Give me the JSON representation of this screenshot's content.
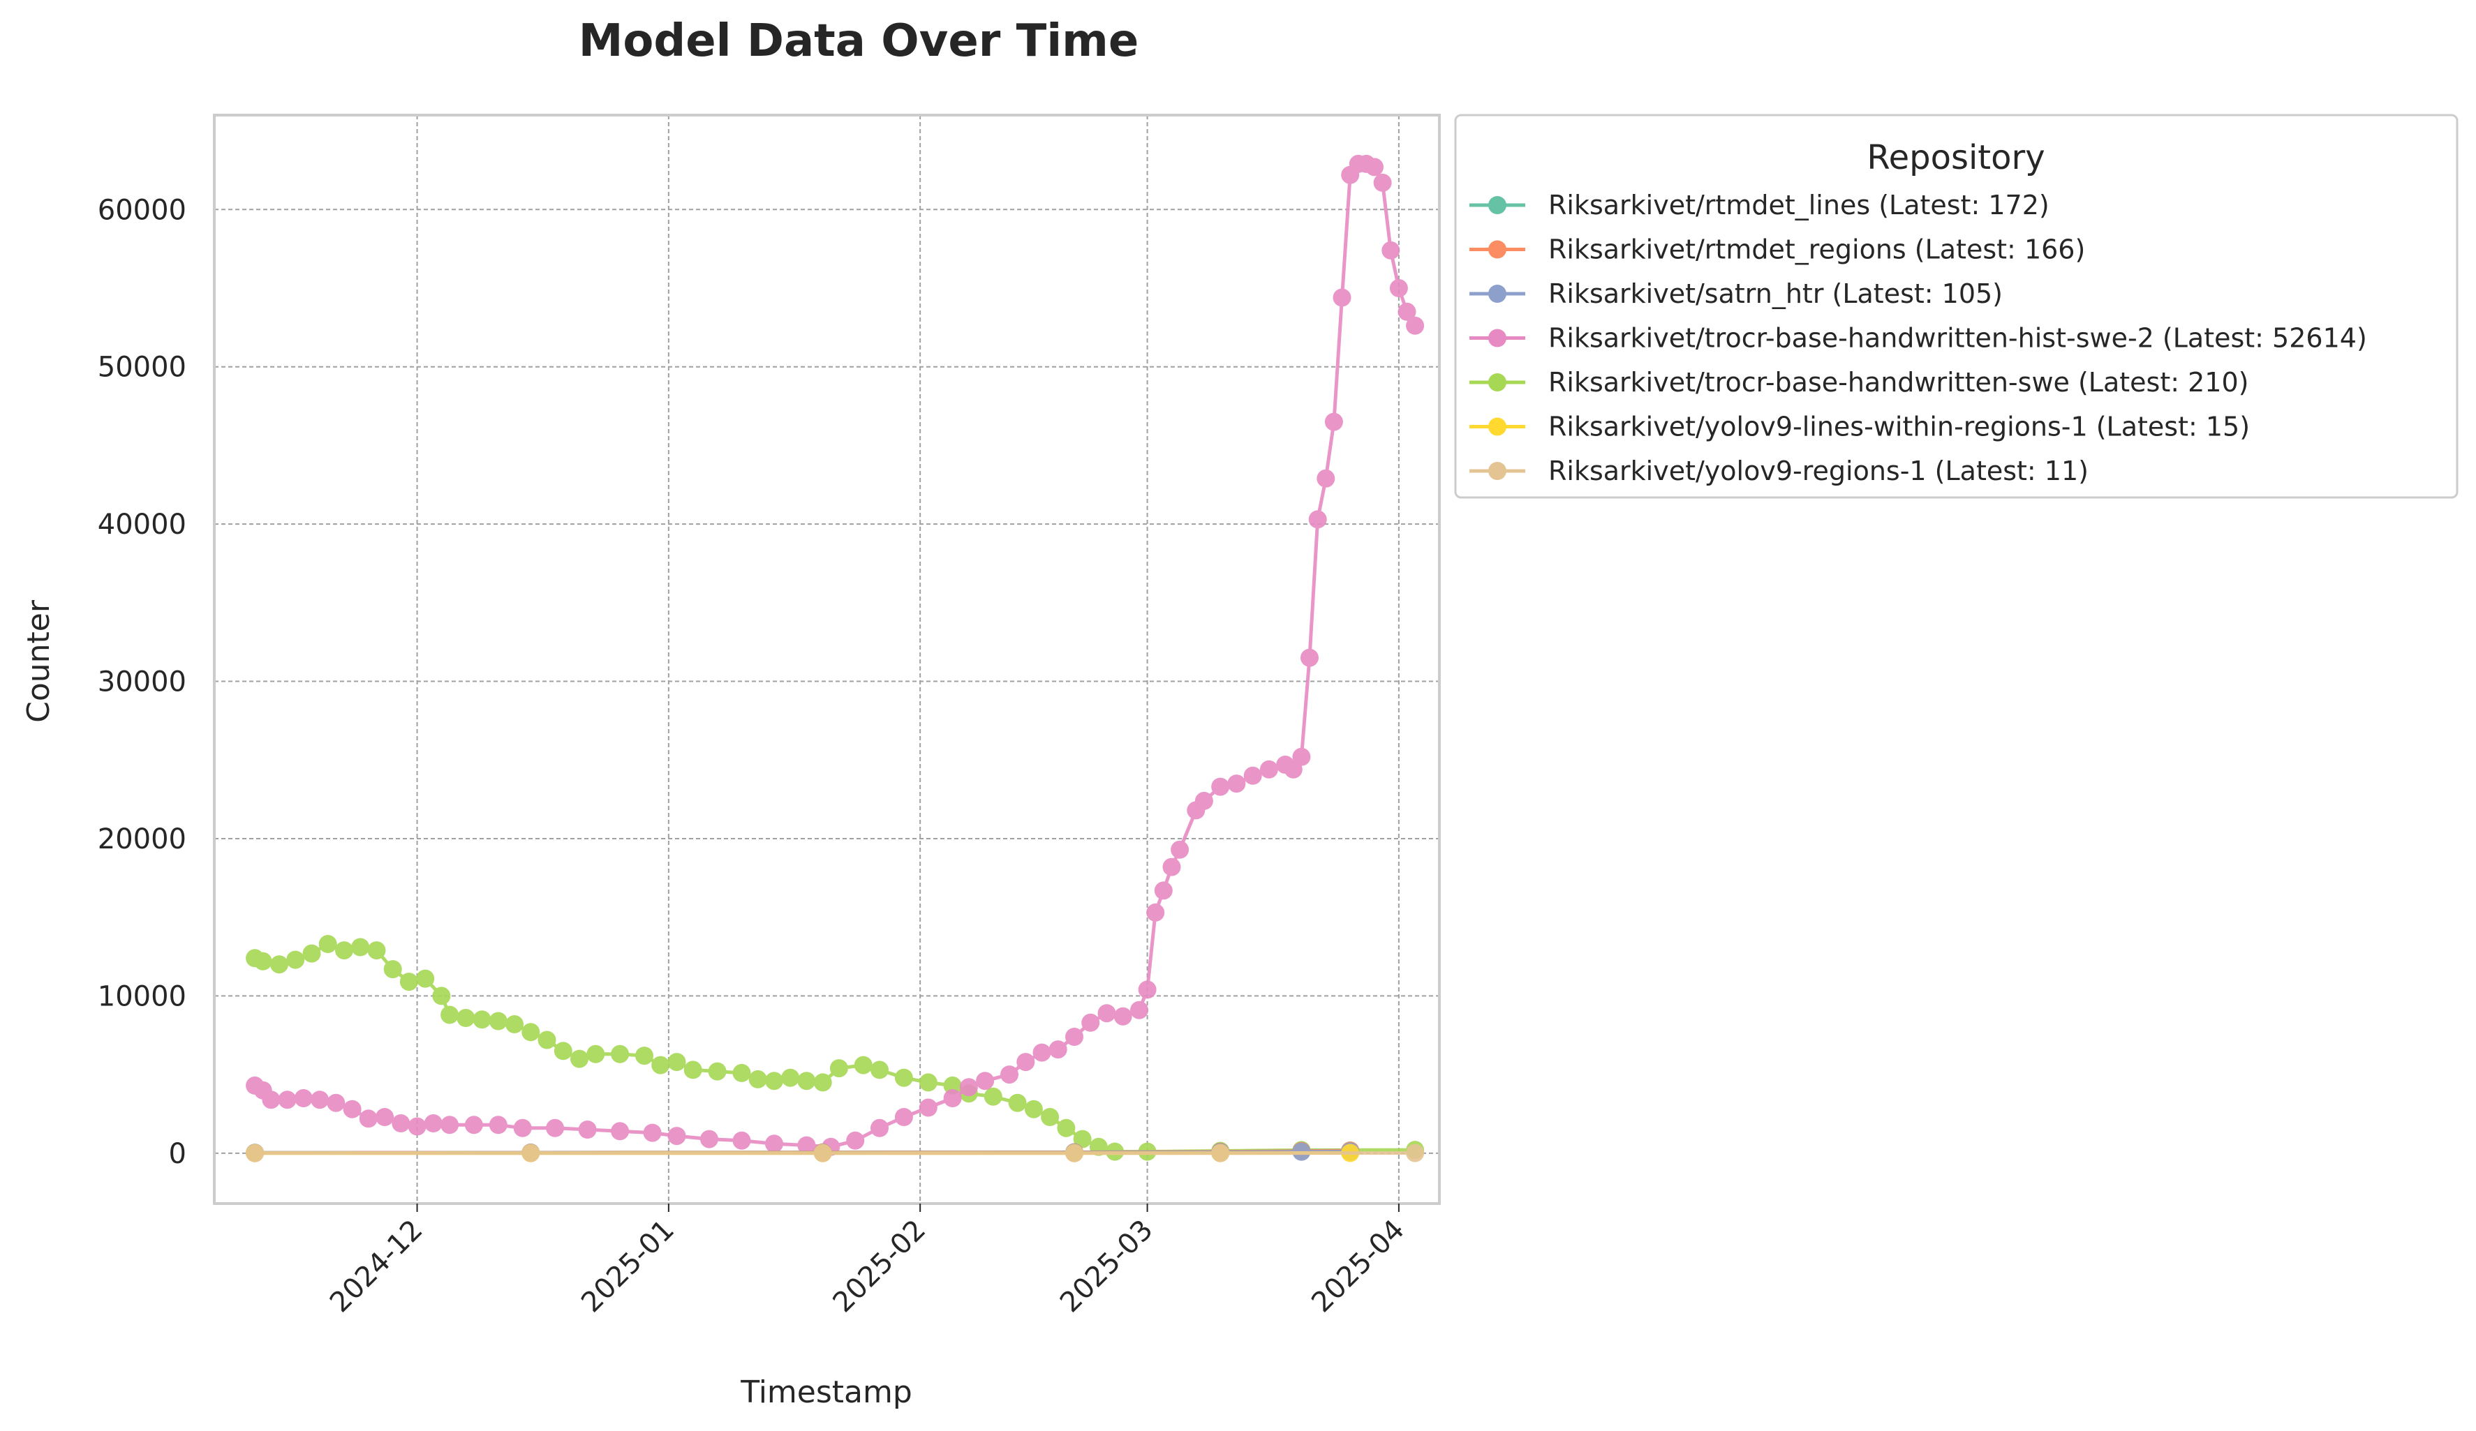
{
  "chart_data": {
    "type": "line",
    "title": "Model Data Over Time",
    "xlabel": "Timestamp",
    "ylabel": "Counter",
    "x_range": [
      "2024-11-06",
      "2025-04-06"
    ],
    "ylim": [
      -3200,
      66000
    ],
    "x_ticks": [
      "2024-12",
      "2025-01",
      "2025-02",
      "2025-03",
      "2025-04"
    ],
    "y_ticks": [
      0,
      10000,
      20000,
      30000,
      40000,
      50000,
      60000
    ],
    "grid": true,
    "legend": {
      "title": "Repository",
      "placement": "outside-right"
    },
    "series": [
      {
        "name": "Riksarkivet/rtmdet_lines (Latest: 172)",
        "color": "#66c2a5",
        "points": [
          [
            "2024-11-11",
            30
          ],
          [
            "2024-12-15",
            40
          ],
          [
            "2025-01-20",
            50
          ],
          [
            "2025-02-20",
            60
          ],
          [
            "2025-03-10",
            90
          ],
          [
            "2025-03-20",
            150
          ],
          [
            "2025-03-26",
            172
          ]
        ]
      },
      {
        "name": "Riksarkivet/rtmdet_regions (Latest: 166)",
        "color": "#fc8d62",
        "points": [
          [
            "2024-11-11",
            30
          ],
          [
            "2024-12-15",
            40
          ],
          [
            "2025-01-20",
            50
          ],
          [
            "2025-02-20",
            60
          ],
          [
            "2025-03-10",
            90
          ],
          [
            "2025-03-20",
            140
          ],
          [
            "2025-03-26",
            166
          ]
        ]
      },
      {
        "name": "Riksarkivet/satrn_htr (Latest: 105)",
        "color": "#8da0cb",
        "points": [
          [
            "2024-11-11",
            20
          ],
          [
            "2024-12-15",
            25
          ],
          [
            "2025-01-20",
            30
          ],
          [
            "2025-02-20",
            40
          ],
          [
            "2025-03-10",
            60
          ],
          [
            "2025-03-20",
            90
          ],
          [
            "2025-03-26",
            105
          ]
        ]
      },
      {
        "name": "Riksarkivet/trocr-base-handwritten-hist-swe-2 (Latest: 52614)",
        "color": "#e78ac3",
        "points": [
          [
            "2024-11-11",
            4300
          ],
          [
            "2024-11-12",
            4000
          ],
          [
            "2024-11-13",
            3400
          ],
          [
            "2024-11-15",
            3400
          ],
          [
            "2024-11-17",
            3500
          ],
          [
            "2024-11-19",
            3400
          ],
          [
            "2024-11-21",
            3200
          ],
          [
            "2024-11-23",
            2800
          ],
          [
            "2024-11-25",
            2200
          ],
          [
            "2024-11-27",
            2300
          ],
          [
            "2024-11-29",
            1900
          ],
          [
            "2024-12-01",
            1700
          ],
          [
            "2024-12-03",
            1900
          ],
          [
            "2024-12-05",
            1800
          ],
          [
            "2024-12-08",
            1800
          ],
          [
            "2024-12-11",
            1800
          ],
          [
            "2024-12-14",
            1600
          ],
          [
            "2024-12-18",
            1600
          ],
          [
            "2024-12-22",
            1500
          ],
          [
            "2024-12-26",
            1400
          ],
          [
            "2024-12-30",
            1300
          ],
          [
            "2025-01-02",
            1100
          ],
          [
            "2025-01-06",
            900
          ],
          [
            "2025-01-10",
            800
          ],
          [
            "2025-01-14",
            600
          ],
          [
            "2025-01-18",
            500
          ],
          [
            "2025-01-21",
            400
          ],
          [
            "2025-01-24",
            800
          ],
          [
            "2025-01-27",
            1600
          ],
          [
            "2025-01-30",
            2300
          ],
          [
            "2025-02-02",
            2900
          ],
          [
            "2025-02-05",
            3500
          ],
          [
            "2025-02-07",
            4200
          ],
          [
            "2025-02-09",
            4600
          ],
          [
            "2025-02-12",
            5000
          ],
          [
            "2025-02-14",
            5800
          ],
          [
            "2025-02-16",
            6400
          ],
          [
            "2025-02-18",
            6600
          ],
          [
            "2025-02-20",
            7400
          ],
          [
            "2025-02-22",
            8300
          ],
          [
            "2025-02-24",
            8900
          ],
          [
            "2025-02-26",
            8700
          ],
          [
            "2025-02-28",
            9100
          ],
          [
            "2025-03-01",
            10400
          ],
          [
            "2025-03-02",
            15300
          ],
          [
            "2025-03-03",
            16700
          ],
          [
            "2025-03-04",
            18200
          ],
          [
            "2025-03-05",
            19300
          ],
          [
            "2025-03-07",
            21800
          ],
          [
            "2025-03-08",
            22400
          ],
          [
            "2025-03-10",
            23300
          ],
          [
            "2025-03-12",
            23500
          ],
          [
            "2025-03-14",
            24000
          ],
          [
            "2025-03-16",
            24400
          ],
          [
            "2025-03-18",
            24700
          ],
          [
            "2025-03-19",
            24400
          ],
          [
            "2025-03-20",
            25200
          ],
          [
            "2025-03-21",
            31500
          ],
          [
            "2025-03-22",
            40300
          ],
          [
            "2025-03-23",
            42900
          ],
          [
            "2025-03-24",
            46500
          ],
          [
            "2025-03-25",
            54400
          ],
          [
            "2025-03-26",
            62200
          ],
          [
            "2025-03-27",
            62900
          ],
          [
            "2025-03-28",
            62900
          ],
          [
            "2025-03-29",
            62700
          ],
          [
            "2025-03-30",
            61700
          ],
          [
            "2025-03-31",
            57400
          ],
          [
            "2025-04-01",
            55000
          ],
          [
            "2025-04-02",
            53500
          ],
          [
            "2025-04-03",
            52614
          ]
        ]
      },
      {
        "name": "Riksarkivet/trocr-base-handwritten-swe (Latest: 210)",
        "color": "#a6d854",
        "points": [
          [
            "2024-11-11",
            12400
          ],
          [
            "2024-11-12",
            12200
          ],
          [
            "2024-11-14",
            12000
          ],
          [
            "2024-11-16",
            12300
          ],
          [
            "2024-11-18",
            12700
          ],
          [
            "2024-11-20",
            13300
          ],
          [
            "2024-11-22",
            12900
          ],
          [
            "2024-11-24",
            13100
          ],
          [
            "2024-11-26",
            12900
          ],
          [
            "2024-11-28",
            11700
          ],
          [
            "2024-11-30",
            10900
          ],
          [
            "2024-12-02",
            11100
          ],
          [
            "2024-12-04",
            10000
          ],
          [
            "2024-12-05",
            8800
          ],
          [
            "2024-12-07",
            8600
          ],
          [
            "2024-12-09",
            8500
          ],
          [
            "2024-12-11",
            8400
          ],
          [
            "2024-12-13",
            8200
          ],
          [
            "2024-12-15",
            7700
          ],
          [
            "2024-12-17",
            7200
          ],
          [
            "2024-12-19",
            6500
          ],
          [
            "2024-12-21",
            6000
          ],
          [
            "2024-12-23",
            6300
          ],
          [
            "2024-12-26",
            6300
          ],
          [
            "2024-12-29",
            6200
          ],
          [
            "2024-12-31",
            5600
          ],
          [
            "2025-01-02",
            5800
          ],
          [
            "2025-01-04",
            5300
          ],
          [
            "2025-01-07",
            5200
          ],
          [
            "2025-01-10",
            5100
          ],
          [
            "2025-01-12",
            4700
          ],
          [
            "2025-01-14",
            4600
          ],
          [
            "2025-01-16",
            4800
          ],
          [
            "2025-01-18",
            4600
          ],
          [
            "2025-01-20",
            4500
          ],
          [
            "2025-01-22",
            5400
          ],
          [
            "2025-01-25",
            5600
          ],
          [
            "2025-01-27",
            5300
          ],
          [
            "2025-01-30",
            4800
          ],
          [
            "2025-02-02",
            4500
          ],
          [
            "2025-02-05",
            4300
          ],
          [
            "2025-02-07",
            3800
          ],
          [
            "2025-02-10",
            3600
          ],
          [
            "2025-02-13",
            3200
          ],
          [
            "2025-02-15",
            2800
          ],
          [
            "2025-02-17",
            2300
          ],
          [
            "2025-02-19",
            1600
          ],
          [
            "2025-02-21",
            900
          ],
          [
            "2025-02-23",
            400
          ],
          [
            "2025-02-25",
            100
          ],
          [
            "2025-03-01",
            100
          ],
          [
            "2025-03-10",
            150
          ],
          [
            "2025-03-20",
            200
          ],
          [
            "2025-04-03",
            210
          ]
        ]
      },
      {
        "name": "Riksarkivet/yolov9-lines-within-regions-1 (Latest: 15)",
        "color": "#ffd92f",
        "points": [
          [
            "2024-11-11",
            5
          ],
          [
            "2024-12-15",
            5
          ],
          [
            "2025-01-20",
            5
          ],
          [
            "2025-02-20",
            8
          ],
          [
            "2025-03-10",
            10
          ],
          [
            "2025-03-26",
            15
          ]
        ]
      },
      {
        "name": "Riksarkivet/yolov9-regions-1 (Latest: 11)",
        "color": "#e5c494",
        "points": [
          [
            "2024-11-11",
            5
          ],
          [
            "2024-12-15",
            5
          ],
          [
            "2025-01-20",
            5
          ],
          [
            "2025-02-20",
            6
          ],
          [
            "2025-03-10",
            8
          ],
          [
            "2025-04-03",
            11
          ]
        ]
      }
    ]
  }
}
